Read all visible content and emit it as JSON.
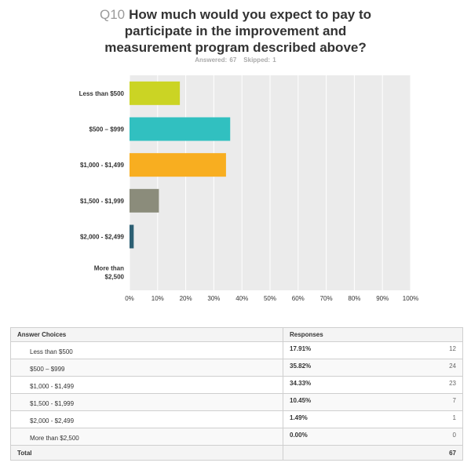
{
  "question": {
    "number": "Q10",
    "text_line1": "How much would you expect to pay to",
    "text_line2": "participate in the improvement and",
    "text_line3": "measurement program described above?",
    "answered": "Answered: 67",
    "skipped": "Skipped: 1"
  },
  "colors": {
    "bars": [
      "#cbd424",
      "#31c0c0",
      "#f8ae20",
      "#8b8c7b",
      "#2c5f73",
      "#dcdcdc"
    ],
    "plot_bg": "#ebebeb",
    "grid": "#ffffff"
  },
  "chart_data": {
    "type": "bar",
    "orientation": "horizontal",
    "title": "",
    "categories": [
      [
        "Less than $500"
      ],
      [
        "$500 – $999"
      ],
      [
        "$1,000 - $1,499"
      ],
      [
        "$1,500 - $1,999"
      ],
      [
        "$2,000 - $2,499"
      ],
      [
        "More than",
        "$2,500"
      ]
    ],
    "values": [
      17.91,
      35.82,
      34.33,
      10.45,
      1.49,
      0.0
    ],
    "xlim": [
      0,
      100
    ],
    "xticks": [
      "0%",
      "10%",
      "20%",
      "30%",
      "40%",
      "50%",
      "60%",
      "70%",
      "80%",
      "90%",
      "100%"
    ],
    "grid": true
  },
  "table": {
    "header_choice": "Answer Choices",
    "header_responses": "Responses",
    "rows": [
      {
        "choice": "Less than $500",
        "pct": "17.91%",
        "count": "12"
      },
      {
        "choice": "$500 – $999",
        "pct": "35.82%",
        "count": "24"
      },
      {
        "choice": "$1,000 - $1,499",
        "pct": "34.33%",
        "count": "23"
      },
      {
        "choice": "$1,500 - $1,999",
        "pct": "10.45%",
        "count": "7"
      },
      {
        "choice": "$2,000 - $2,499",
        "pct": "1.49%",
        "count": "1"
      },
      {
        "choice": "More than $2,500",
        "pct": "0.00%",
        "count": "0"
      }
    ],
    "total_label": "Total",
    "total_count": "67"
  }
}
